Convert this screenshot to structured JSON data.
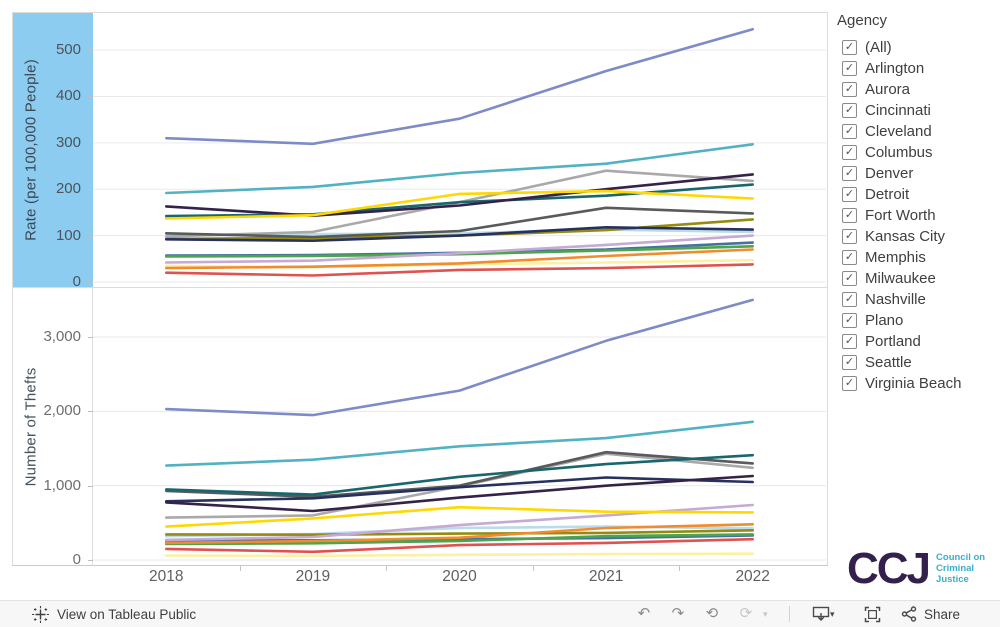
{
  "legend": {
    "title": "Agency",
    "items": [
      {
        "label": "(All)",
        "checked": true
      },
      {
        "label": "Arlington",
        "checked": true
      },
      {
        "label": "Aurora",
        "checked": true
      },
      {
        "label": "Cincinnati",
        "checked": true
      },
      {
        "label": "Cleveland",
        "checked": true
      },
      {
        "label": "Columbus",
        "checked": true
      },
      {
        "label": "Denver",
        "checked": true
      },
      {
        "label": "Detroit",
        "checked": true
      },
      {
        "label": "Fort Worth",
        "checked": true
      },
      {
        "label": "Kansas City",
        "checked": true
      },
      {
        "label": "Memphis",
        "checked": true
      },
      {
        "label": "Milwaukee",
        "checked": true
      },
      {
        "label": "Nashville",
        "checked": true
      },
      {
        "label": "Plano",
        "checked": true
      },
      {
        "label": "Portland",
        "checked": true
      },
      {
        "label": "Seattle",
        "checked": true
      },
      {
        "label": "Virginia Beach",
        "checked": true
      }
    ]
  },
  "footer": {
    "view_label": "View on Tableau Public",
    "share_label": "Share"
  },
  "logo": {
    "text": "CCJ",
    "tagline": [
      "Council on",
      "Criminal",
      "Justice"
    ],
    "color": "#34204c",
    "accent": "#3baec6"
  },
  "colors": {
    "axis_highlight": "#8cccf1",
    "grid": "#eaeaea",
    "frame": "#dcdcdc",
    "axis_line": "#c9c9c9"
  },
  "chart_data": [
    {
      "type": "line",
      "title": "",
      "xlabel": "",
      "ylabel": "Rate (per 100,000 People)",
      "x": [
        2018,
        2019,
        2020,
        2021,
        2022
      ],
      "ylim": [
        0,
        580
      ],
      "ytick_values": [
        0,
        100,
        200,
        300,
        400,
        500
      ],
      "ytick_labels": [
        "0",
        "100",
        "200",
        "300",
        "400",
        "500"
      ],
      "grid": true,
      "legend_position": "right",
      "axis_highlighted": true,
      "draw_order": [
        "Plano",
        "Aurora",
        "Milwaukee",
        "Cleveland",
        "Virginia Beach",
        "Arlington",
        "Seattle",
        "Detroit",
        "Nashville",
        "Columbus",
        "Fort Worth",
        "Portland",
        "Kansas City",
        "Cincinnati",
        "Denver",
        "Memphis"
      ],
      "series": [
        {
          "name": "Arlington",
          "color": "#4da44d",
          "values": [
            55,
            56,
            60,
            68,
            77
          ]
        },
        {
          "name": "Aurora",
          "color": "#b9dce8",
          "values": [
            100,
            103,
            105,
            113,
            108
          ]
        },
        {
          "name": "Cincinnati",
          "color": "#fed800",
          "values": [
            137,
            144,
            190,
            196,
            180
          ]
        },
        {
          "name": "Cleveland",
          "color": "#948b10",
          "values": [
            93,
            95,
            100,
            112,
            135
          ]
        },
        {
          "name": "Columbus",
          "color": "#595a5a",
          "values": [
            105,
            97,
            110,
            160,
            148
          ]
        },
        {
          "name": "Denver",
          "color": "#52b2c3",
          "values": [
            192,
            205,
            235,
            255,
            297
          ]
        },
        {
          "name": "Detroit",
          "color": "#e0524f",
          "values": [
            20,
            14,
            26,
            30,
            38
          ]
        },
        {
          "name": "Fort Worth",
          "color": "#27315f",
          "values": [
            92,
            89,
            100,
            118,
            113
          ]
        },
        {
          "name": "Kansas City",
          "color": "#342248",
          "values": [
            163,
            143,
            165,
            200,
            232
          ]
        },
        {
          "name": "Memphis",
          "color": "#7d8bc7",
          "values": [
            310,
            298,
            352,
            455,
            545
          ]
        },
        {
          "name": "Milwaukee",
          "color": "#aaa9a9",
          "values": [
            98,
            108,
            172,
            240,
            218
          ]
        },
        {
          "name": "Nashville",
          "color": "#f08c2e",
          "values": [
            30,
            33,
            40,
            56,
            70
          ]
        },
        {
          "name": "Plano",
          "color": "#fcf0a2",
          "values": [
            35,
            32,
            38,
            42,
            47
          ]
        },
        {
          "name": "Portland",
          "color": "#19666f",
          "values": [
            142,
            146,
            172,
            186,
            210
          ]
        },
        {
          "name": "Seattle",
          "color": "#c4aad4",
          "values": [
            42,
            46,
            62,
            80,
            100
          ]
        },
        {
          "name": "Virginia Beach",
          "color": "#4472a0",
          "values": [
            57,
            58,
            63,
            70,
            85
          ]
        }
      ]
    },
    {
      "type": "line",
      "title": "",
      "xlabel": "",
      "ylabel": "Number of Thefts",
      "x": [
        2018,
        2019,
        2020,
        2021,
        2022
      ],
      "ylim": [
        0,
        3660
      ],
      "ytick_values": [
        0,
        1000,
        2000,
        3000
      ],
      "ytick_labels": [
        "0",
        "1,000",
        "2,000",
        "3,000"
      ],
      "grid": true,
      "legend_position": "right",
      "axis_highlighted": false,
      "draw_order": [
        "Plano",
        "Aurora",
        "Milwaukee",
        "Cleveland",
        "Virginia Beach",
        "Arlington",
        "Seattle",
        "Detroit",
        "Nashville",
        "Columbus",
        "Fort Worth",
        "Portland",
        "Kansas City",
        "Cincinnati",
        "Denver",
        "Memphis"
      ],
      "series": [
        {
          "name": "Arlington",
          "color": "#4da44d",
          "values": [
            215,
            225,
            255,
            320,
            345
          ]
        },
        {
          "name": "Aurora",
          "color": "#b9dce8",
          "values": [
            320,
            350,
            430,
            450,
            425
          ]
        },
        {
          "name": "Cincinnati",
          "color": "#fed800",
          "values": [
            450,
            560,
            710,
            650,
            640
          ]
        },
        {
          "name": "Cleveland",
          "color": "#948b10",
          "values": [
            345,
            340,
            355,
            365,
            400
          ]
        },
        {
          "name": "Columbus",
          "color": "#595a5a",
          "values": [
            930,
            850,
            1000,
            1450,
            1300
          ]
        },
        {
          "name": "Denver",
          "color": "#52b2c3",
          "values": [
            1270,
            1350,
            1530,
            1640,
            1860
          ]
        },
        {
          "name": "Detroit",
          "color": "#e0524f",
          "values": [
            150,
            110,
            200,
            230,
            280
          ]
        },
        {
          "name": "Fort Worth",
          "color": "#27315f",
          "values": [
            790,
            830,
            980,
            1110,
            1050
          ]
        },
        {
          "name": "Kansas City",
          "color": "#342248",
          "values": [
            775,
            660,
            840,
            1000,
            1130
          ]
        },
        {
          "name": "Memphis",
          "color": "#7d8bc7",
          "values": [
            2030,
            1950,
            2280,
            2950,
            3500
          ]
        },
        {
          "name": "Milwaukee",
          "color": "#aaa9a9",
          "values": [
            570,
            600,
            990,
            1430,
            1240
          ]
        },
        {
          "name": "Nashville",
          "color": "#f08c2e",
          "values": [
            230,
            255,
            300,
            430,
            480
          ]
        },
        {
          "name": "Plano",
          "color": "#fcf0a2",
          "values": [
            60,
            55,
            70,
            80,
            85
          ]
        },
        {
          "name": "Portland",
          "color": "#19666f",
          "values": [
            950,
            880,
            1120,
            1290,
            1410
          ]
        },
        {
          "name": "Seattle",
          "color": "#c4aad4",
          "values": [
            270,
            310,
            470,
            600,
            740
          ]
        },
        {
          "name": "Virginia Beach",
          "color": "#4472a0",
          "values": [
            260,
            265,
            280,
            295,
            330
          ]
        }
      ]
    }
  ]
}
